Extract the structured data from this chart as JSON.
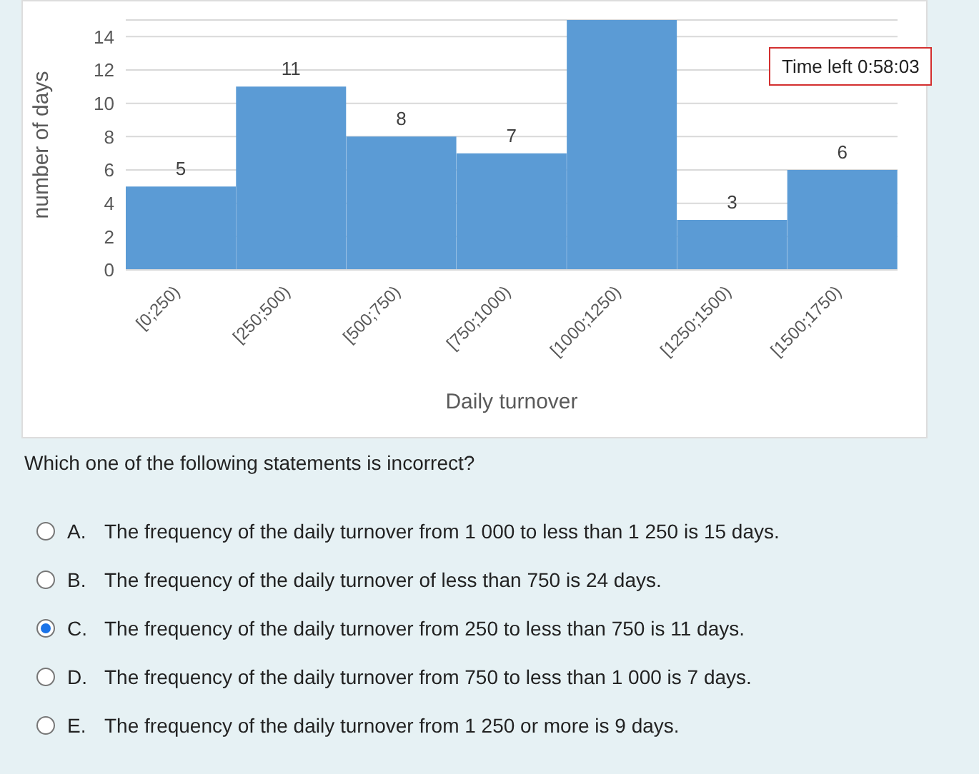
{
  "chart_data": {
    "type": "bar",
    "xlabel": "Daily turnover",
    "ylabel": "number of days",
    "categories": [
      "[0;250)",
      "[250;500)",
      "[500;750)",
      "[750;1000)",
      "[1000;1250)",
      "[1250;1500)",
      "[1500;1750)"
    ],
    "values": [
      5,
      11,
      8,
      7,
      15,
      3,
      6
    ],
    "value_labels": [
      "5",
      "11",
      "8",
      "7",
      null,
      "3",
      "6"
    ],
    "color": "#5b9bd5",
    "ylim": [
      0,
      15
    ],
    "yticks": [
      0,
      2,
      4,
      6,
      8,
      10,
      12,
      14
    ],
    "grid": "y",
    "annotations": [
      "Time left 0:58:03",
      "Which one of the following statements is incorrect?",
      "A.",
      "The frequency of the daily turnover from 1 000 to less than 1 250 is 15 days.",
      "B.",
      "The frequency of the daily turnover of less than 750 is 24 days.",
      "C.",
      "The frequency of the daily turnover from 250 to less than 750 is 11 days.",
      "D.",
      "The frequency of the daily turnover from 750 to less than 1 000 is 7 days.",
      "E.",
      "The frequency of the daily turnover from 1 250 or more is 9 days."
    ]
  }
}
